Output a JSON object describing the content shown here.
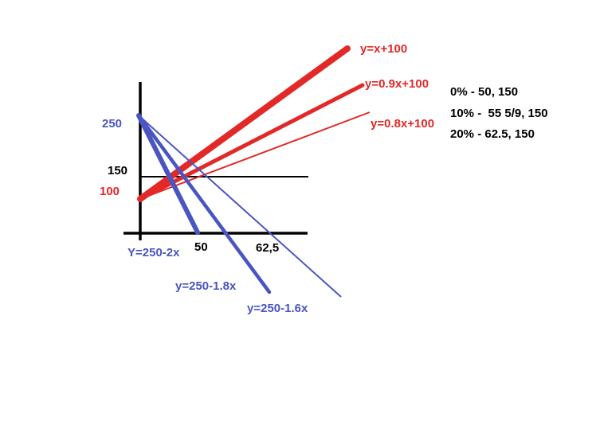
{
  "red_lines": [
    "y=x+100",
    "y=0.9x+100",
    "y=0.8x+100"
  ],
  "blue_lines": [
    "Y=250-2x",
    "y=250-1.8x",
    "y=250-1.6x"
  ],
  "notes": [
    "0% - 50, 150",
    "10% -  55 5/9, 150",
    "20% - 62.5, 150"
  ],
  "y_labels": [
    "250",
    "150",
    "100"
  ],
  "x_labels": [
    "50",
    "62,5"
  ]
}
